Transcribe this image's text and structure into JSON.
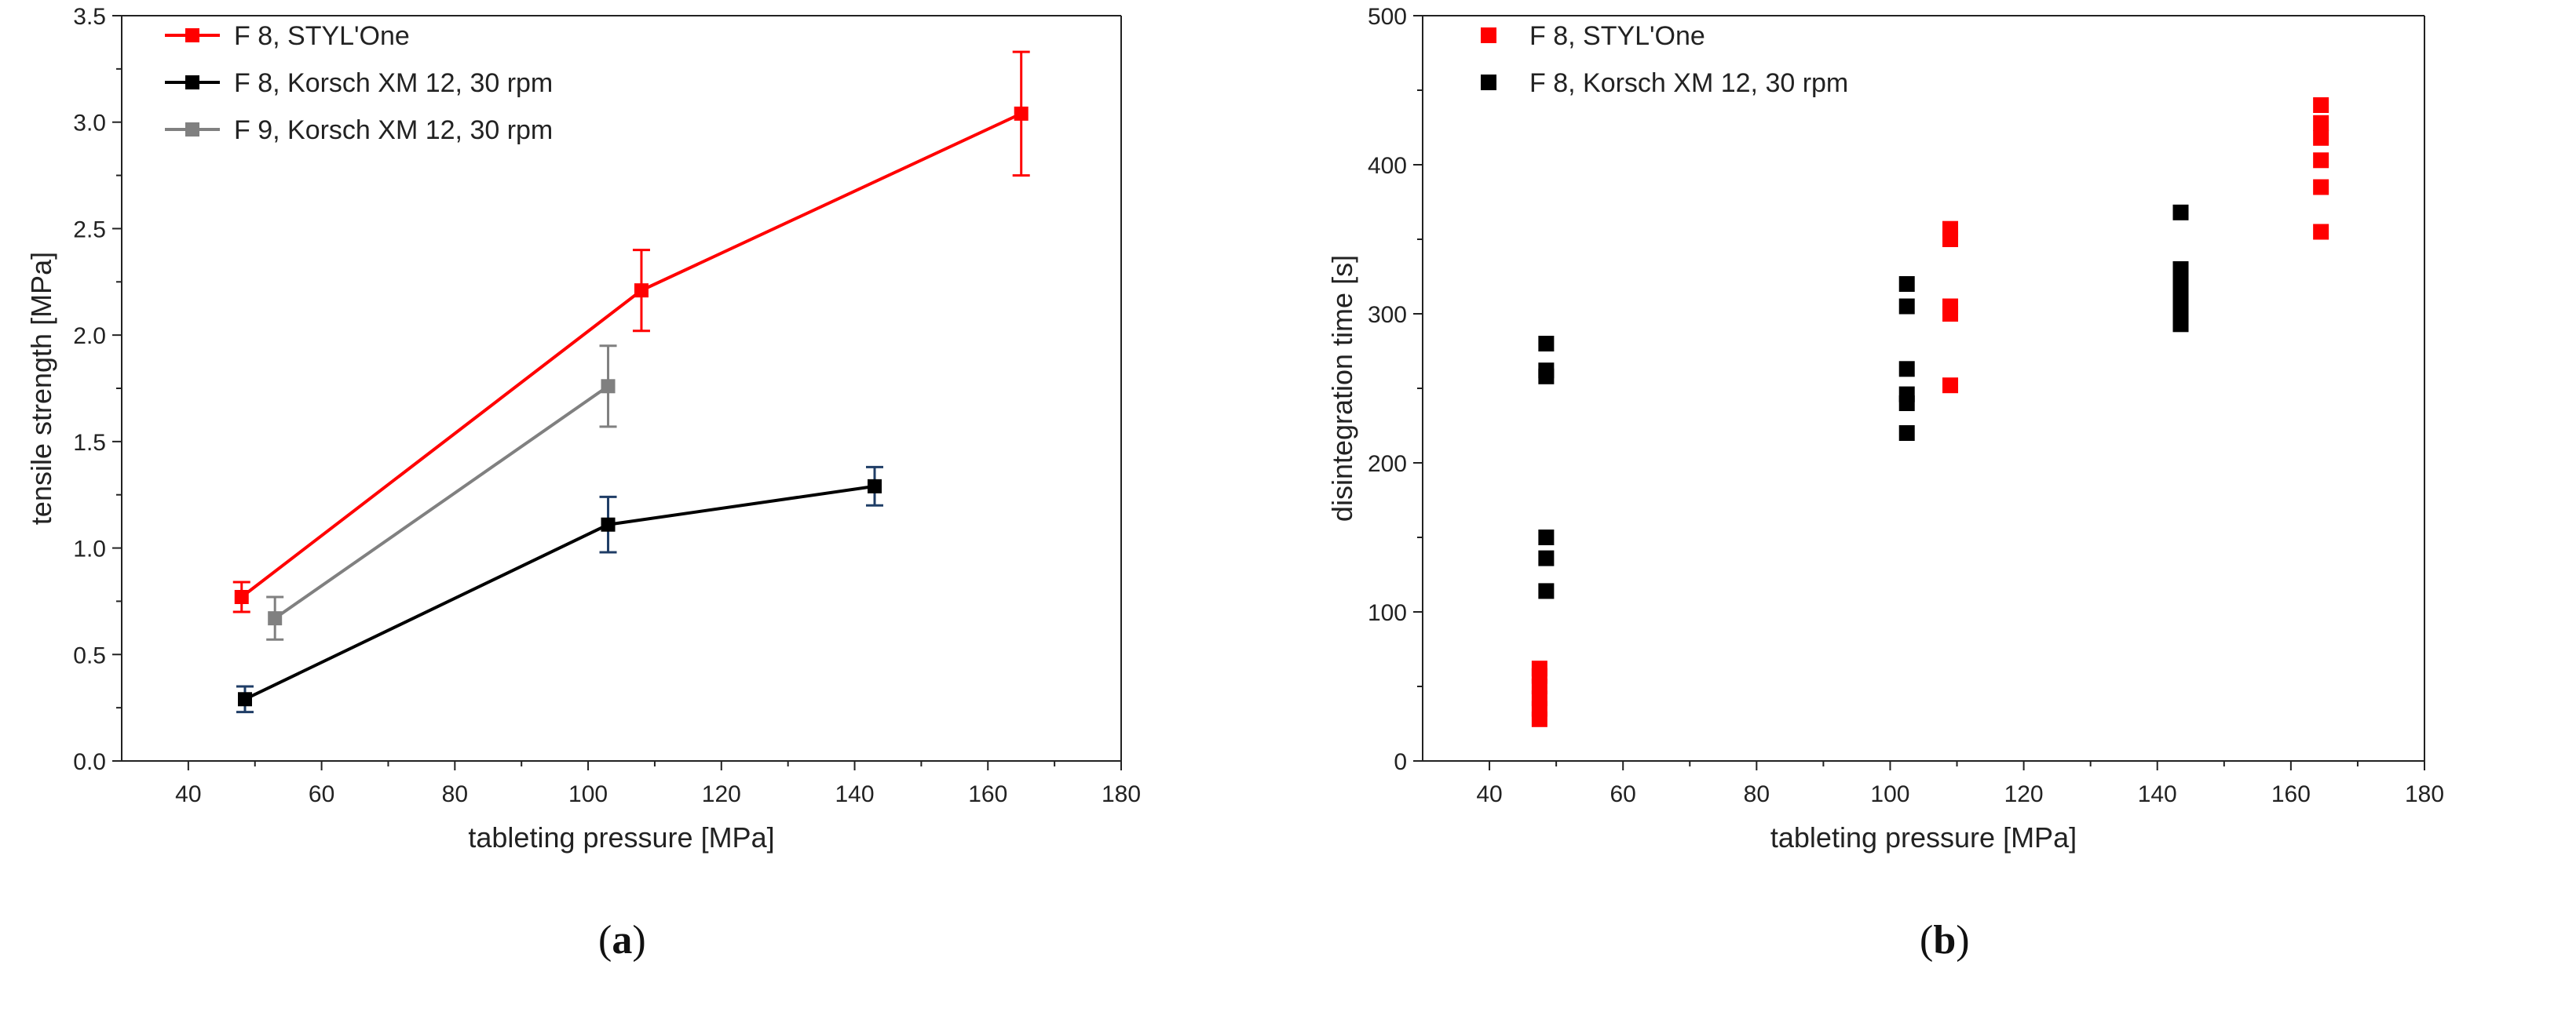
{
  "chart_data": [
    {
      "panel": "(a)",
      "panel_letter": "a",
      "type": "line",
      "xlabel": "tableting pressure [MPa]",
      "ylabel": "tensile strength [MPa]",
      "xlim": [
        30,
        180
      ],
      "ylim": [
        0,
        3.5
      ],
      "xticks": [
        40,
        60,
        80,
        100,
        120,
        140,
        160,
        180
      ],
      "yticks": [
        0.0,
        0.5,
        1.0,
        1.5,
        2.0,
        2.5,
        3.0,
        3.5
      ],
      "xtick_labels": [
        "40",
        "60",
        "80",
        "100",
        "120",
        "140",
        "160",
        "180"
      ],
      "ytick_labels": [
        "0.0",
        "0.5",
        "1.0",
        "1.5",
        "2.0",
        "2.5",
        "3.0",
        "3.5"
      ],
      "legend_position": "top-left",
      "series": [
        {
          "name": "F 8, STYL'One",
          "color": "#ff0000",
          "error_color": "#ff0000",
          "x": [
            48,
            108,
            165
          ],
          "y": [
            0.77,
            2.21,
            3.04
          ],
          "err": [
            0.07,
            0.19,
            0.29
          ]
        },
        {
          "name": "F 8, Korsch XM 12, 30 rpm",
          "color": "#000000",
          "error_color": "#1f3d66",
          "x": [
            48.5,
            103,
            143
          ],
          "y": [
            0.29,
            1.11,
            1.29
          ],
          "err": [
            0.06,
            0.13,
            0.09
          ]
        },
        {
          "name": "F 9, Korsch XM 12, 30 rpm",
          "color": "#808080",
          "error_color": "#808080",
          "x": [
            53,
            103
          ],
          "y": [
            0.67,
            1.76
          ],
          "err": [
            0.1,
            0.19
          ]
        }
      ]
    },
    {
      "panel": "(b)",
      "panel_letter": "b",
      "type": "scatter",
      "xlabel": "tableting pressure [MPa]",
      "ylabel": "disintegration time [s]",
      "xlim": [
        30,
        180
      ],
      "ylim": [
        0,
        500
      ],
      "xticks": [
        40,
        60,
        80,
        100,
        120,
        140,
        160,
        180
      ],
      "yticks": [
        0,
        100,
        200,
        300,
        400,
        500
      ],
      "xtick_labels": [
        "40",
        "60",
        "80",
        "100",
        "120",
        "140",
        "160",
        "180"
      ],
      "ytick_labels": [
        "0",
        "100",
        "200",
        "300",
        "400",
        "500"
      ],
      "legend_position": "top-left",
      "series": [
        {
          "name": "F 8, STYL'One",
          "color": "#ff0000",
          "x": [
            47.5,
            47.5,
            47.5,
            47.5,
            47.5,
            47.5,
            109,
            109,
            109,
            109,
            109,
            164.5,
            164.5,
            164.5,
            164.5,
            164.5,
            164.5
          ],
          "y": [
            28,
            35,
            42,
            50,
            57,
            62,
            252,
            300,
            305,
            350,
            357,
            355,
            385,
            403,
            418,
            428,
            440
          ]
        },
        {
          "name": "F 8, Korsch XM 12, 30 rpm",
          "color": "#000000",
          "x": [
            48.5,
            48.5,
            48.5,
            48.5,
            48.5,
            48.5,
            102.5,
            102.5,
            102.5,
            102.5,
            102.5,
            102.5,
            143.5,
            143.5,
            143.5,
            143.5,
            143.5,
            143.5,
            143.5
          ],
          "y": [
            114,
            136,
            150,
            258,
            262,
            280,
            220,
            240,
            246,
            263,
            305,
            320,
            293,
            300,
            308,
            316,
            324,
            330,
            368
          ]
        }
      ]
    }
  ]
}
